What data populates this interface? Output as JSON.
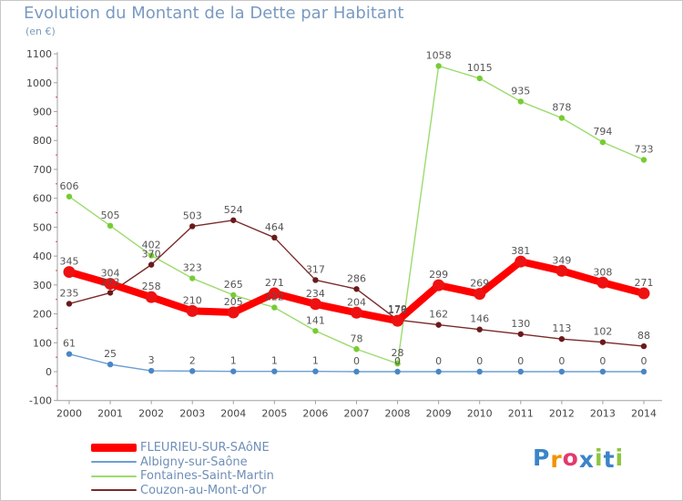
{
  "header": {
    "title": "Evolution du Montant de la Dette par Habitant",
    "unit": "(en €)"
  },
  "logo": {
    "text": "Proxiti",
    "letters": [
      "P",
      "r",
      "o",
      "x",
      "i",
      "t",
      "i"
    ],
    "colors": [
      "#3a84c9",
      "#f39200",
      "#e23a6e",
      "#3a84c9",
      "#8cc63f",
      "#3a84c9",
      "#8cc63f"
    ]
  },
  "chart_data": {
    "type": "line",
    "title": "Evolution du Montant de la Dette par Habitant",
    "ylabel": "(en €)",
    "xlabel": "",
    "x": [
      "2000",
      "2001",
      "2002",
      "2003",
      "2004",
      "2005",
      "2006",
      "2007",
      "2008",
      "2009",
      "2010",
      "2011",
      "2012",
      "2013",
      "2014"
    ],
    "ylim": [
      -100,
      1100
    ],
    "yticks": [
      -100,
      0,
      100,
      200,
      300,
      400,
      500,
      600,
      700,
      800,
      900,
      1000,
      1100
    ],
    "grid": false,
    "legend_position": "bottom-left",
    "series": [
      {
        "name": "FLEURIEU-SUR-SAôNE",
        "color": "#ff0000",
        "dot_color": "#ee1111",
        "style": "thick",
        "values": [
          345,
          304,
          258,
          210,
          205,
          271,
          234,
          204,
          176,
          299,
          269,
          381,
          349,
          308,
          271
        ]
      },
      {
        "name": "Albigny-sur-Saône",
        "color": "#6d9fd2",
        "dot_color": "#4a86c6",
        "style": "thin",
        "values": [
          61,
          25,
          3,
          2,
          1,
          1,
          1,
          0,
          0,
          0,
          0,
          0,
          0,
          0,
          0
        ]
      },
      {
        "name": "Fontaines-Saint-Martin",
        "color": "#9cdb6e",
        "dot_color": "#77cc33",
        "style": "thin",
        "values": [
          606,
          505,
          402,
          323,
          265,
          222,
          141,
          78,
          28,
          1058,
          1015,
          935,
          878,
          794,
          733
        ]
      },
      {
        "name": "Couzon-au-Mont-d'Or",
        "color": "#7a2a2a",
        "dot_color": "#6a1a1a",
        "style": "thin",
        "values": [
          235,
          273,
          370,
          503,
          524,
          464,
          317,
          286,
          179,
          162,
          146,
          130,
          113,
          102,
          88
        ]
      }
    ]
  }
}
